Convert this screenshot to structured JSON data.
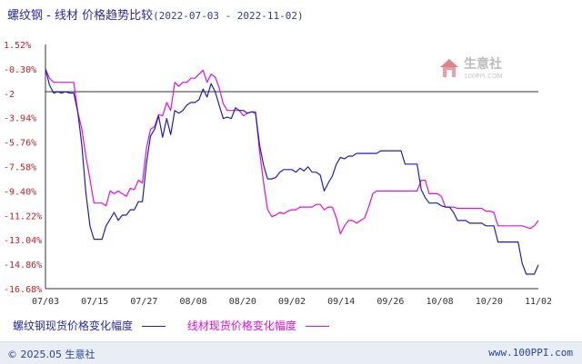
{
  "header": {
    "title": "螺纹钢 - 线材 价格趋势比较",
    "date_range": "(2022-07-03 - 2022-11-02)"
  },
  "watermark": {
    "cn": "生意社",
    "en": "100PPI.COM"
  },
  "footer": {
    "copyright": "© 2025.05 生意社",
    "site": "www.100PPI.com"
  },
  "colors": {
    "series_1": "#1f1fb8",
    "series_2": "#e010e0",
    "axis_labels": "#c0202a",
    "zero_line": "#333333"
  },
  "chart_data": {
    "type": "line",
    "y_ticks": [
      "1.52%",
      "-0.30%",
      "-2",
      "-3.94%",
      "-5.76%",
      "-7.58%",
      "-9.40%",
      "-11.22%",
      "-13.04%",
      "-14.86%",
      "-16.68%"
    ],
    "ylim": [
      -16.68,
      1.52
    ],
    "x_ticks": [
      "07/03",
      "07/15",
      "07/27",
      "08/08",
      "08/20",
      "09/02",
      "09/14",
      "09/26",
      "10/08",
      "10/20",
      "11/02"
    ],
    "x_range": [
      "2022-07-03",
      "2022-11-02"
    ],
    "grid": false,
    "legend": "bottom",
    "series": [
      {
        "name": "螺纹钢现货价格变化幅度",
        "color": "#1f1fb8",
        "points": [
          [
            "2022-07-03",
            -0.3
          ],
          [
            "2022-07-04",
            -1.5
          ],
          [
            "2022-07-05",
            -2.1
          ],
          [
            "2022-07-06",
            -2.0
          ],
          [
            "2022-07-07",
            -2.1
          ],
          [
            "2022-07-08",
            -2.0
          ],
          [
            "2022-07-09",
            -2.1
          ],
          [
            "2022-07-10",
            -2.1
          ],
          [
            "2022-07-11",
            -3.5
          ],
          [
            "2022-07-12",
            -6.0
          ],
          [
            "2022-07-13",
            -9.5
          ],
          [
            "2022-07-14",
            -12.0
          ],
          [
            "2022-07-15",
            -13.0
          ],
          [
            "2022-07-16",
            -13.0
          ],
          [
            "2022-07-17",
            -13.0
          ],
          [
            "2022-07-18",
            -12.0
          ],
          [
            "2022-07-19",
            -11.5
          ],
          [
            "2022-07-20",
            -11.0
          ],
          [
            "2022-07-21",
            -11.6
          ],
          [
            "2022-07-22",
            -11.2
          ],
          [
            "2022-07-23",
            -11.2
          ],
          [
            "2022-07-24",
            -10.8
          ],
          [
            "2022-07-25",
            -10.8
          ],
          [
            "2022-07-26",
            -10.2
          ],
          [
            "2022-07-27",
            -10.2
          ],
          [
            "2022-07-28",
            -7.3
          ],
          [
            "2022-07-29",
            -5.3
          ],
          [
            "2022-07-30",
            -4.8
          ],
          [
            "2022-07-31",
            -3.8
          ],
          [
            "2022-08-01",
            -5.4
          ],
          [
            "2022-08-02",
            -4.0
          ],
          [
            "2022-08-03",
            -5.2
          ],
          [
            "2022-08-04",
            -3.4
          ],
          [
            "2022-08-05",
            -3.6
          ],
          [
            "2022-08-06",
            -3.4
          ],
          [
            "2022-08-07",
            -3.0
          ],
          [
            "2022-08-08",
            -2.8
          ],
          [
            "2022-08-09",
            -2.8
          ],
          [
            "2022-08-10",
            -2.6
          ],
          [
            "2022-08-11",
            -1.8
          ],
          [
            "2022-08-12",
            -2.4
          ],
          [
            "2022-08-13",
            -1.4
          ],
          [
            "2022-08-14",
            -2.0
          ],
          [
            "2022-08-15",
            -3.0
          ],
          [
            "2022-08-16",
            -4.0
          ],
          [
            "2022-08-17",
            -3.9
          ],
          [
            "2022-08-18",
            -4.0
          ],
          [
            "2022-08-19",
            -3.2
          ],
          [
            "2022-08-20",
            -3.4
          ],
          [
            "2022-08-21",
            -3.4
          ],
          [
            "2022-08-22",
            -3.6
          ],
          [
            "2022-08-23",
            -3.5
          ],
          [
            "2022-08-24",
            -3.6
          ],
          [
            "2022-08-25",
            -6.0
          ],
          [
            "2022-08-26",
            -7.5
          ],
          [
            "2022-08-27",
            -8.5
          ],
          [
            "2022-08-28",
            -8.5
          ],
          [
            "2022-08-29",
            -8.4
          ],
          [
            "2022-08-30",
            -8.0
          ],
          [
            "2022-08-31",
            -7.8
          ],
          [
            "2022-09-01",
            -7.8
          ],
          [
            "2022-09-02",
            -7.8
          ],
          [
            "2022-09-03",
            -8.0
          ],
          [
            "2022-09-04",
            -7.7
          ],
          [
            "2022-09-05",
            -7.9
          ],
          [
            "2022-09-06",
            -7.6
          ],
          [
            "2022-09-07",
            -8.0
          ],
          [
            "2022-09-08",
            -8.0
          ],
          [
            "2022-09-09",
            -8.2
          ],
          [
            "2022-09-10",
            -9.4
          ],
          [
            "2022-09-11",
            -8.8
          ],
          [
            "2022-09-12",
            -8.3
          ],
          [
            "2022-09-13",
            -7.4
          ],
          [
            "2022-09-14",
            -6.9
          ],
          [
            "2022-09-15",
            -7.0
          ],
          [
            "2022-09-16",
            -6.8
          ],
          [
            "2022-09-17",
            -6.8
          ],
          [
            "2022-09-18",
            -6.6
          ],
          [
            "2022-09-19",
            -6.6
          ],
          [
            "2022-09-20",
            -6.6
          ],
          [
            "2022-09-21",
            -6.6
          ],
          [
            "2022-09-22",
            -6.6
          ],
          [
            "2022-09-23",
            -6.6
          ],
          [
            "2022-09-24",
            -6.4
          ],
          [
            "2022-09-25",
            -6.4
          ],
          [
            "2022-09-26",
            -6.4
          ],
          [
            "2022-09-27",
            -6.4
          ],
          [
            "2022-09-28",
            -6.4
          ],
          [
            "2022-09-29",
            -6.4
          ],
          [
            "2022-09-30",
            -7.4
          ],
          [
            "2022-10-01",
            -7.4
          ],
          [
            "2022-10-02",
            -7.4
          ],
          [
            "2022-10-03",
            -7.4
          ],
          [
            "2022-10-04",
            -9.3
          ],
          [
            "2022-10-05",
            -9.9
          ],
          [
            "2022-10-06",
            -10.3
          ],
          [
            "2022-10-07",
            -10.3
          ],
          [
            "2022-10-08",
            -10.3
          ],
          [
            "2022-10-09",
            -10.5
          ],
          [
            "2022-10-10",
            -10.6
          ],
          [
            "2022-10-11",
            -10.6
          ],
          [
            "2022-10-12",
            -11.0
          ],
          [
            "2022-10-13",
            -11.6
          ],
          [
            "2022-10-14",
            -11.6
          ],
          [
            "2022-10-15",
            -11.6
          ],
          [
            "2022-10-16",
            -11.8
          ],
          [
            "2022-10-17",
            -11.8
          ],
          [
            "2022-10-18",
            -11.8
          ],
          [
            "2022-10-19",
            -11.8
          ],
          [
            "2022-10-20",
            -12.0
          ],
          [
            "2022-10-21",
            -12.0
          ],
          [
            "2022-10-22",
            -12.0
          ],
          [
            "2022-10-23",
            -13.2
          ],
          [
            "2022-10-24",
            -13.2
          ],
          [
            "2022-10-25",
            -13.2
          ],
          [
            "2022-10-26",
            -13.2
          ],
          [
            "2022-10-27",
            -13.2
          ],
          [
            "2022-10-28",
            -13.2
          ],
          [
            "2022-10-29",
            -14.8
          ],
          [
            "2022-10-30",
            -15.6
          ],
          [
            "2022-10-31",
            -15.6
          ],
          [
            "2022-11-01",
            -15.6
          ],
          [
            "2022-11-02",
            -14.9
          ]
        ]
      },
      {
        "name": "线材现货价格变化幅度",
        "color": "#e010e0",
        "points": [
          [
            "2022-07-03",
            -0.3
          ],
          [
            "2022-07-04",
            -1.0
          ],
          [
            "2022-07-05",
            -1.3
          ],
          [
            "2022-07-06",
            -1.3
          ],
          [
            "2022-07-07",
            -1.3
          ],
          [
            "2022-07-08",
            -1.3
          ],
          [
            "2022-07-09",
            -1.3
          ],
          [
            "2022-07-10",
            -1.3
          ],
          [
            "2022-07-11",
            -3.5
          ],
          [
            "2022-07-12",
            -4.8
          ],
          [
            "2022-07-13",
            -6.8
          ],
          [
            "2022-07-14",
            -8.5
          ],
          [
            "2022-07-15",
            -10.3
          ],
          [
            "2022-07-16",
            -10.3
          ],
          [
            "2022-07-17",
            -10.3
          ],
          [
            "2022-07-18",
            -10.5
          ],
          [
            "2022-07-19",
            -9.4
          ],
          [
            "2022-07-20",
            -9.6
          ],
          [
            "2022-07-21",
            -9.4
          ],
          [
            "2022-07-22",
            -9.6
          ],
          [
            "2022-07-23",
            -9.8
          ],
          [
            "2022-07-24",
            -9.2
          ],
          [
            "2022-07-25",
            -9.3
          ],
          [
            "2022-07-26",
            -8.6
          ],
          [
            "2022-07-27",
            -8.8
          ],
          [
            "2022-07-28",
            -6.2
          ],
          [
            "2022-07-29",
            -4.8
          ],
          [
            "2022-07-30",
            -4.6
          ],
          [
            "2022-07-31",
            -3.7
          ],
          [
            "2022-08-01",
            -3.8
          ],
          [
            "2022-08-02",
            -2.8
          ],
          [
            "2022-08-03",
            -3.4
          ],
          [
            "2022-08-04",
            -1.3
          ],
          [
            "2022-08-05",
            -1.6
          ],
          [
            "2022-08-06",
            -1.3
          ],
          [
            "2022-08-07",
            -1.3
          ],
          [
            "2022-08-08",
            -1.0
          ],
          [
            "2022-08-09",
            -1.0
          ],
          [
            "2022-08-10",
            -0.7
          ],
          [
            "2022-08-11",
            -0.4
          ],
          [
            "2022-08-12",
            -1.3
          ],
          [
            "2022-08-13",
            -0.7
          ],
          [
            "2022-08-14",
            -0.9
          ],
          [
            "2022-08-15",
            -1.7
          ],
          [
            "2022-08-16",
            -2.9
          ],
          [
            "2022-08-17",
            -3.4
          ],
          [
            "2022-08-18",
            -3.4
          ],
          [
            "2022-08-19",
            -3.4
          ],
          [
            "2022-08-20",
            -3.4
          ],
          [
            "2022-08-21",
            -3.8
          ],
          [
            "2022-08-22",
            -3.6
          ],
          [
            "2022-08-23",
            -3.5
          ],
          [
            "2022-08-24",
            -3.5
          ],
          [
            "2022-08-25",
            -6.5
          ],
          [
            "2022-08-26",
            -8.8
          ],
          [
            "2022-08-27",
            -10.8
          ],
          [
            "2022-08-28",
            -11.3
          ],
          [
            "2022-08-29",
            -11.2
          ],
          [
            "2022-08-30",
            -11.0
          ],
          [
            "2022-08-31",
            -11.1
          ],
          [
            "2022-09-01",
            -10.9
          ],
          [
            "2022-09-02",
            -10.8
          ],
          [
            "2022-09-03",
            -10.8
          ],
          [
            "2022-09-04",
            -10.6
          ],
          [
            "2022-09-05",
            -10.6
          ],
          [
            "2022-09-06",
            -10.6
          ],
          [
            "2022-09-07",
            -10.6
          ],
          [
            "2022-09-08",
            -10.4
          ],
          [
            "2022-09-09",
            -10.4
          ],
          [
            "2022-09-10",
            -10.8
          ],
          [
            "2022-09-11",
            -10.6
          ],
          [
            "2022-09-12",
            -10.6
          ],
          [
            "2022-09-13",
            -11.4
          ],
          [
            "2022-09-14",
            -12.6
          ],
          [
            "2022-09-15",
            -12.0
          ],
          [
            "2022-09-16",
            -11.6
          ],
          [
            "2022-09-17",
            -11.6
          ],
          [
            "2022-09-18",
            -11.8
          ],
          [
            "2022-09-19",
            -11.6
          ],
          [
            "2022-09-20",
            -11.4
          ],
          [
            "2022-09-21",
            -10.6
          ],
          [
            "2022-09-22",
            -9.6
          ],
          [
            "2022-09-23",
            -9.4
          ],
          [
            "2022-09-24",
            -9.4
          ],
          [
            "2022-09-25",
            -9.4
          ],
          [
            "2022-09-26",
            -9.4
          ],
          [
            "2022-09-27",
            -9.4
          ],
          [
            "2022-09-28",
            -9.4
          ],
          [
            "2022-09-29",
            -9.4
          ],
          [
            "2022-09-30",
            -9.4
          ],
          [
            "2022-10-01",
            -9.4
          ],
          [
            "2022-10-02",
            -9.4
          ],
          [
            "2022-10-03",
            -9.4
          ],
          [
            "2022-10-04",
            -8.6
          ],
          [
            "2022-10-05",
            -8.6
          ],
          [
            "2022-10-06",
            -9.6
          ],
          [
            "2022-10-07",
            -9.6
          ],
          [
            "2022-10-08",
            -9.6
          ],
          [
            "2022-10-09",
            -9.8
          ],
          [
            "2022-10-10",
            -10.6
          ],
          [
            "2022-10-11",
            -10.6
          ],
          [
            "2022-10-12",
            -10.6
          ],
          [
            "2022-10-13",
            -10.7
          ],
          [
            "2022-10-14",
            -10.7
          ],
          [
            "2022-10-15",
            -10.7
          ],
          [
            "2022-10-16",
            -10.7
          ],
          [
            "2022-10-17",
            -10.7
          ],
          [
            "2022-10-18",
            -10.7
          ],
          [
            "2022-10-19",
            -10.7
          ],
          [
            "2022-10-20",
            -10.9
          ],
          [
            "2022-10-21",
            -10.9
          ],
          [
            "2022-10-22",
            -11.0
          ],
          [
            "2022-10-23",
            -12.0
          ],
          [
            "2022-10-24",
            -12.0
          ],
          [
            "2022-10-25",
            -12.0
          ],
          [
            "2022-10-26",
            -12.0
          ],
          [
            "2022-10-27",
            -12.0
          ],
          [
            "2022-10-28",
            -12.0
          ],
          [
            "2022-10-29",
            -12.0
          ],
          [
            "2022-10-30",
            -12.1
          ],
          [
            "2022-10-31",
            -12.2
          ],
          [
            "2022-11-01",
            -12.0
          ],
          [
            "2022-11-02",
            -11.6
          ]
        ]
      }
    ]
  }
}
